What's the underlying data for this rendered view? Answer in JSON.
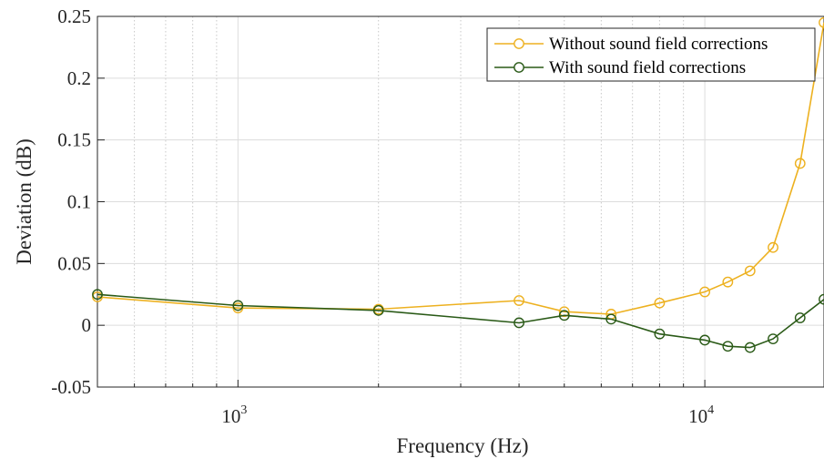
{
  "chart_data": {
    "type": "line",
    "xscale": "log",
    "xlim": [
      500,
      18000
    ],
    "ylim": [
      -0.05,
      0.25
    ],
    "xlabel": "Frequency (Hz)",
    "ylabel": "Deviation (dB)",
    "grid": true,
    "legend_position": "top-right",
    "y_ticks": [
      {
        "value": -0.05,
        "label": "-0.05"
      },
      {
        "value": 0,
        "label": "0"
      },
      {
        "value": 0.05,
        "label": "0.05"
      },
      {
        "value": 0.1,
        "label": "0.1"
      },
      {
        "value": 0.15,
        "label": "0.15"
      },
      {
        "value": 0.2,
        "label": "0.2"
      },
      {
        "value": 0.25,
        "label": "0.25"
      }
    ],
    "x_major_ticks": [
      {
        "value": 1000,
        "base": "10",
        "exp": "3"
      },
      {
        "value": 10000,
        "base": "10",
        "exp": "4"
      }
    ],
    "x_minor_ticks": [
      600,
      700,
      800,
      900,
      2000,
      3000,
      4000,
      5000,
      6000,
      7000,
      8000,
      9000
    ],
    "series": [
      {
        "name": "Without sound field corrections",
        "color": "#EDB120",
        "x": [
          500,
          1000,
          2000,
          4000,
          5000,
          6300,
          8000,
          10000,
          11200,
          12500,
          14000,
          16000,
          18000
        ],
        "y": [
          0.023,
          0.014,
          0.013,
          0.02,
          0.011,
          0.009,
          0.018,
          0.027,
          0.035,
          0.044,
          0.063,
          0.131,
          0.245
        ]
      },
      {
        "name": "With sound field corrections",
        "color": "#2A5A17",
        "x": [
          500,
          1000,
          2000,
          4000,
          5000,
          6300,
          8000,
          10000,
          11200,
          12500,
          14000,
          16000,
          18000
        ],
        "y": [
          0.025,
          0.016,
          0.012,
          0.002,
          0.008,
          0.005,
          -0.007,
          -0.012,
          -0.017,
          -0.018,
          -0.011,
          0.006,
          0.021
        ]
      }
    ]
  }
}
